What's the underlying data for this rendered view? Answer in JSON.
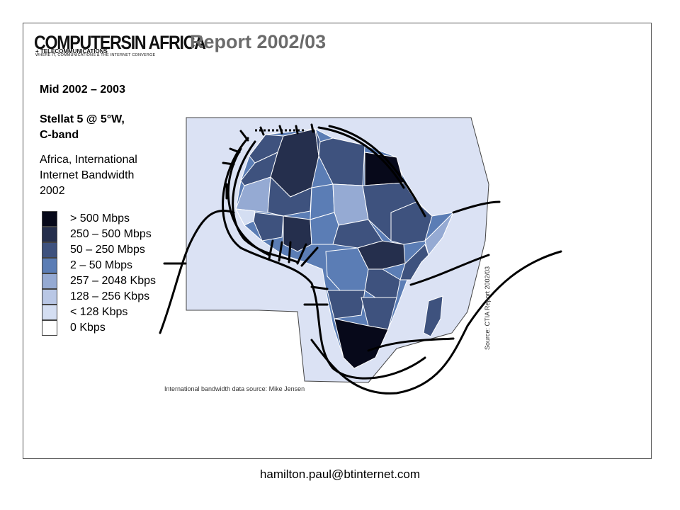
{
  "header": {
    "logo_main": "COMPUTERSIN AFRICA",
    "logo_sub": "+ TELECOMMUNICATIONS",
    "logo_tagline": "WHERE IT, COMMUNICATIONS & THE INTERNET CONVERGE",
    "report_title": "Report 2002/03"
  },
  "left_panel": {
    "period": "Mid 2002 – 2003",
    "satellite_line1": "Stellat 5 @ 5°W,",
    "satellite_line2": "C-band",
    "subtitle_line1": "Africa, International",
    "subtitle_line2": "Internet Bandwidth",
    "subtitle_line3": "2002"
  },
  "legend": {
    "items": [
      {
        "label": "> 500 Mbps",
        "color": "#07091a"
      },
      {
        "label": "250 – 500 Mbps",
        "color": "#252f4d"
      },
      {
        "label": "50 – 250 Mbps",
        "color": "#3e527e"
      },
      {
        "label": "2 – 50 Mbps",
        "color": "#5b7db5"
      },
      {
        "label": "257 – 2048 Kbps",
        "color": "#95aad3"
      },
      {
        "label": "128 – 256 Kbps",
        "color": "#b9c7e5"
      },
      {
        "label": "< 128 Kbps",
        "color": "#d4def2"
      },
      {
        "label": "0 Kbps",
        "color": "#ffffff"
      }
    ]
  },
  "map": {
    "footprint_color": "#dbe2f4",
    "source_bottom": "International bandwidth data source: Mike Jensen",
    "source_right": "Source: CTIA Report 2002/03"
  },
  "footer": {
    "email": "hamilton.paul@btinternet.com"
  }
}
